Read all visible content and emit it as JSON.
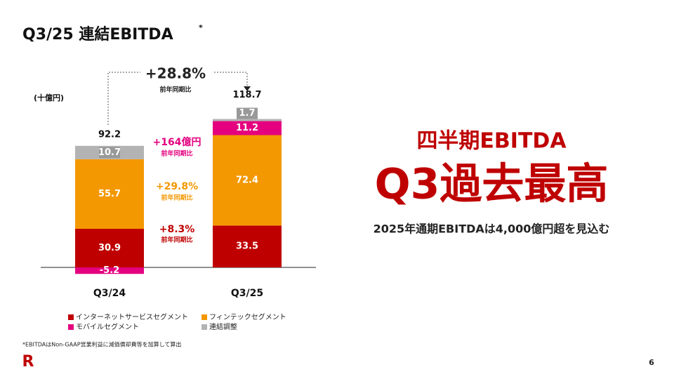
{
  "slide": {
    "title": "Q3/25 連結EBITDA",
    "title_mark": "*",
    "headline1": "四半期EBITDA",
    "headline2": "Q3過去最高",
    "subline": "2025年通期EBITDAは4,000億円超を見込む",
    "footnote": "*EBITDAはNon-GAAP営業利益に減価償却費等を加算して算出",
    "page": "6",
    "logo": "R"
  },
  "chart_data": {
    "type": "stacked_bar",
    "unit": "(十億円)",
    "categories": [
      "Q3/24",
      "Q3/25"
    ],
    "series": [
      {
        "name": "インターネットサービスセグメント",
        "color": "#bf0000",
        "values": [
          30.9,
          33.5
        ]
      },
      {
        "name": "フィンテックセグメント",
        "color": "#f39800",
        "values": [
          55.7,
          72.4
        ]
      },
      {
        "name": "モバイルセグメント",
        "color": "#e4007f",
        "values": [
          -5.2,
          11.2
        ]
      },
      {
        "name": "連結調整",
        "color": "#b3b3b3",
        "values": [
          10.7,
          1.7
        ]
      }
    ],
    "totals": [
      92.2,
      118.7
    ],
    "annotations": [
      {
        "text": "+28.8%",
        "sub": "前年同期比",
        "color": "#222222"
      },
      {
        "text": "+164億円",
        "sub": "前年同期比",
        "color": "#e4007f"
      },
      {
        "text": "+29.8%",
        "sub": "前年同期比",
        "color": "#f39800"
      },
      {
        "text": "+8.3%",
        "sub": "前年同期比",
        "color": "#bf0000"
      }
    ]
  }
}
